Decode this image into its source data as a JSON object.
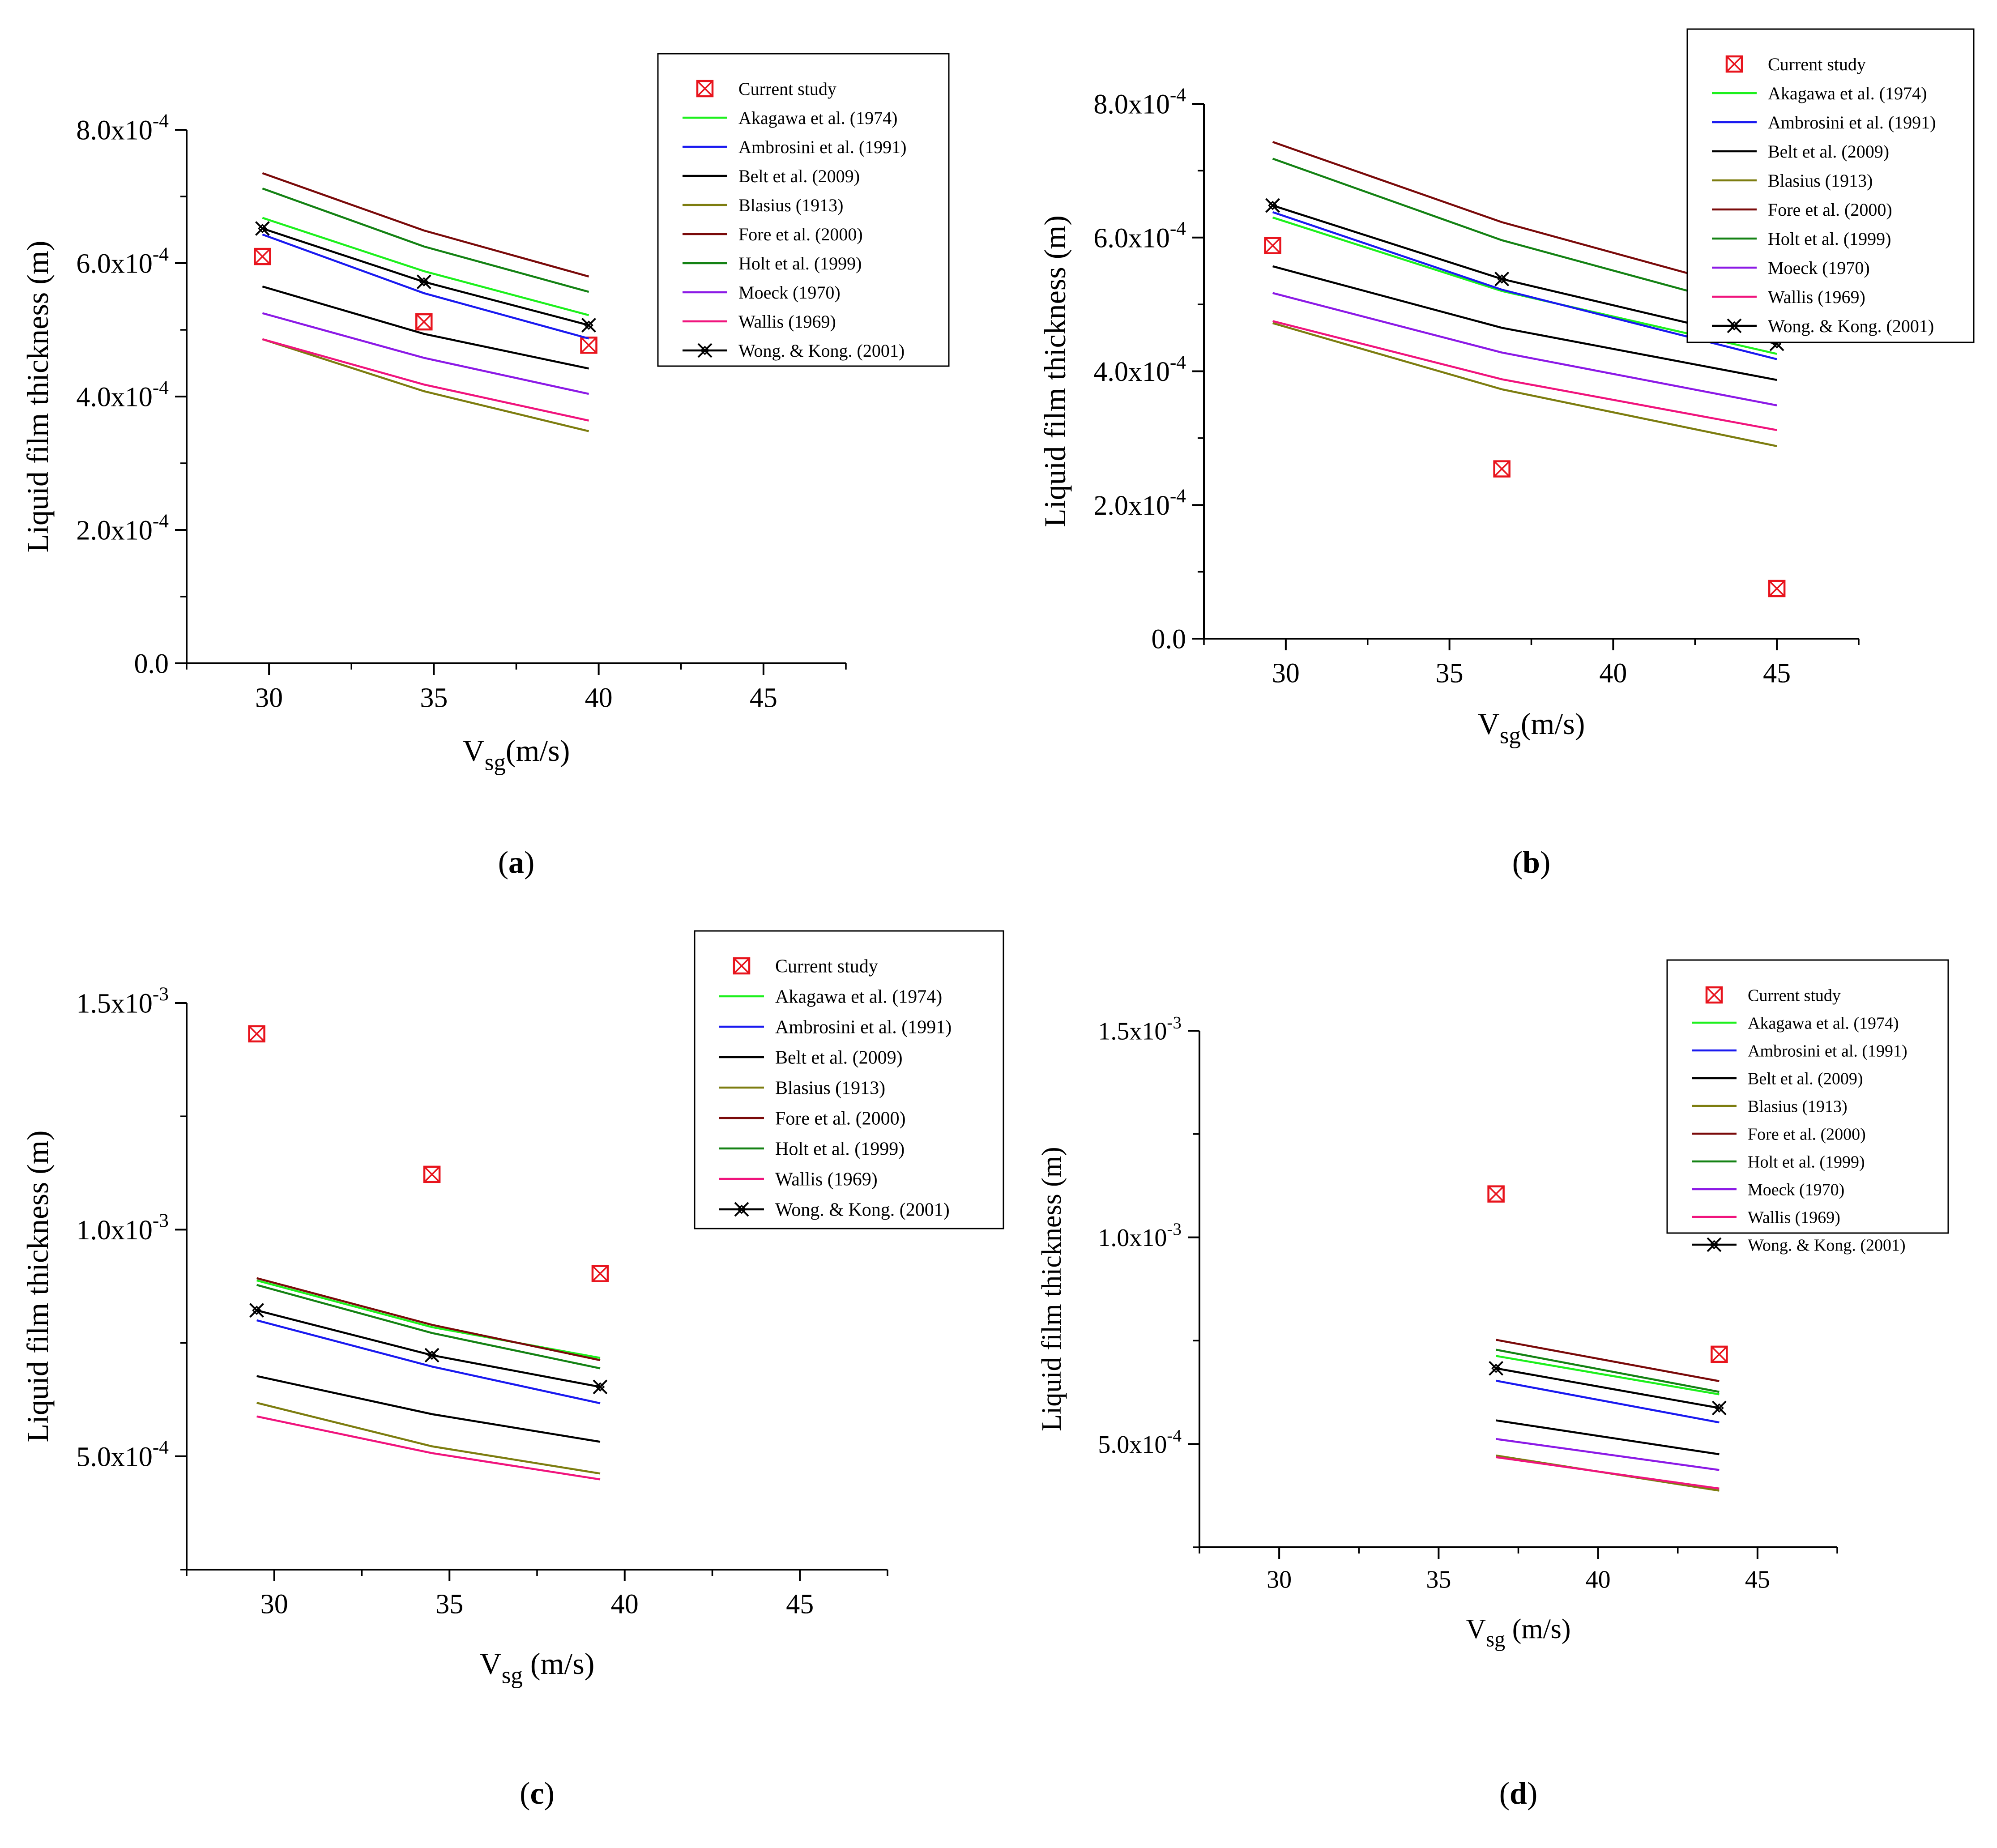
{
  "chart_data": [
    {
      "type": "line",
      "panel_label": "a",
      "xlabel": "V",
      "xlabel_sub": "sg",
      "xlabel_unit": "(m/s)",
      "ylabel": "Liquid film thickness (m)",
      "xlim": [
        27.5,
        47.5
      ],
      "ylim": [
        0,
        0.0008
      ],
      "xticks": [
        30,
        35,
        40,
        45
      ],
      "yticks": [
        {
          "value": 0,
          "mant": "0.0",
          "exp": ""
        },
        {
          "value": 0.0002,
          "mant": "2.0x10",
          "exp": "-4"
        },
        {
          "value": 0.0004,
          "mant": "4.0x10",
          "exp": "-4"
        },
        {
          "value": 0.0006,
          "mant": "6.0x10",
          "exp": "-4"
        },
        {
          "value": 0.0008,
          "mant": "8.0x10",
          "exp": "-4"
        }
      ],
      "legend_placement": "top-right",
      "series": [
        {
          "name": "Current study",
          "color": "#e8141d",
          "style": "marker",
          "x": [
            29.8,
            34.7,
            39.7
          ],
          "values": [
            0.00061,
            0.000512,
            0.000477
          ]
        },
        {
          "name": "Akagawa et al. (1974)",
          "color": "#1df01d",
          "style": "line",
          "x": [
            29.8,
            34.7,
            39.7
          ],
          "values": [
            0.000668,
            0.000588,
            0.000522
          ]
        },
        {
          "name": "Ambrosini et al. (1991)",
          "color": "#1a1af0",
          "style": "line",
          "x": [
            29.8,
            34.7,
            39.7
          ],
          "values": [
            0.000643,
            0.000555,
            0.000487
          ]
        },
        {
          "name": "Belt et al. (2009)",
          "color": "#000000",
          "style": "line",
          "x": [
            29.8,
            34.7,
            39.7
          ],
          "values": [
            0.000565,
            0.000494,
            0.000442
          ]
        },
        {
          "name": "Blasius (1913)",
          "color": "#7d7d10",
          "style": "line",
          "x": [
            29.8,
            34.7,
            39.7
          ],
          "values": [
            0.000486,
            0.000408,
            0.000348
          ]
        },
        {
          "name": "Fore et al. (2000)",
          "color": "#7a0a0a",
          "style": "line",
          "x": [
            29.8,
            34.7,
            39.7
          ],
          "values": [
            0.000735,
            0.000649,
            0.00058
          ]
        },
        {
          "name": "Holt et al. (1999)",
          "color": "#148214",
          "style": "line",
          "x": [
            29.8,
            34.7,
            39.7
          ],
          "values": [
            0.000712,
            0.000625,
            0.000557
          ]
        },
        {
          "name": "Moeck (1970)",
          "color": "#8c1ae6",
          "style": "line",
          "x": [
            29.8,
            34.7,
            39.7
          ],
          "values": [
            0.000525,
            0.000458,
            0.000404
          ]
        },
        {
          "name": "Wallis (1969)",
          "color": "#f0147d",
          "style": "line",
          "x": [
            29.8,
            34.7,
            39.7
          ],
          "values": [
            0.000486,
            0.000418,
            0.000364
          ]
        },
        {
          "name": "Wong. & Kong. (2001)",
          "color": "#000000",
          "style": "line+marker",
          "x": [
            29.8,
            34.7,
            39.7
          ],
          "values": [
            0.000652,
            0.000572,
            0.000507
          ]
        }
      ]
    },
    {
      "type": "line",
      "panel_label": "b",
      "xlabel": "V",
      "xlabel_sub": "sg",
      "xlabel_unit": "(m/s)",
      "ylabel": "Liquid film thickness (m)",
      "xlim": [
        27.5,
        47.5
      ],
      "ylim": [
        0,
        0.0008
      ],
      "xticks": [
        30,
        35,
        40,
        45
      ],
      "yticks": [
        {
          "value": 0,
          "mant": "0.0",
          "exp": ""
        },
        {
          "value": 0.0002,
          "mant": "2.0x10",
          "exp": "-4"
        },
        {
          "value": 0.0004,
          "mant": "4.0x10",
          "exp": "-4"
        },
        {
          "value": 0.0006,
          "mant": "6.0x10",
          "exp": "-4"
        },
        {
          "value": 0.0008,
          "mant": "8.0x10",
          "exp": "-4"
        }
      ],
      "legend_placement": "top-right",
      "series": [
        {
          "name": "Current study",
          "color": "#e8141d",
          "style": "marker",
          "x": [
            29.6,
            36.6,
            45.0
          ],
          "values": [
            0.000588,
            0.000254,
            7.5e-05
          ]
        },
        {
          "name": "Akagawa et al. (1974)",
          "color": "#1df01d",
          "style": "line",
          "x": [
            29.6,
            36.6,
            45.0
          ],
          "values": [
            0.00063,
            0.00052,
            0.000426
          ]
        },
        {
          "name": "Ambrosini et al. (1991)",
          "color": "#1a1af0",
          "style": "line",
          "x": [
            29.6,
            36.6,
            45.0
          ],
          "values": [
            0.000638,
            0.000522,
            0.000418
          ]
        },
        {
          "name": "Belt et al. (2009)",
          "color": "#000000",
          "style": "line",
          "x": [
            29.6,
            36.6,
            45.0
          ],
          "values": [
            0.000557,
            0.000465,
            0.000387
          ]
        },
        {
          "name": "Blasius (1913)",
          "color": "#7d7d10",
          "style": "line",
          "x": [
            29.6,
            36.6,
            45.0
          ],
          "values": [
            0.000472,
            0.000373,
            0.000288
          ]
        },
        {
          "name": "Fore et al. (2000)",
          "color": "#7a0a0a",
          "style": "line",
          "x": [
            29.6,
            36.6,
            45.0
          ],
          "values": [
            0.000743,
            0.000623,
            0.00051
          ]
        },
        {
          "name": "Holt et al. (1999)",
          "color": "#148214",
          "style": "line",
          "x": [
            29.6,
            36.6,
            45.0
          ],
          "values": [
            0.000718,
            0.000596,
            0.000484
          ]
        },
        {
          "name": "Moeck (1970)",
          "color": "#8c1ae6",
          "style": "line",
          "x": [
            29.6,
            36.6,
            45.0
          ],
          "values": [
            0.000517,
            0.000428,
            0.000349
          ]
        },
        {
          "name": "Wallis (1969)",
          "color": "#f0147d",
          "style": "line",
          "x": [
            29.6,
            36.6,
            45.0
          ],
          "values": [
            0.000475,
            0.000388,
            0.000312
          ]
        },
        {
          "name": "Wong. & Kong. (2001)",
          "color": "#000000",
          "style": "line+marker",
          "x": [
            29.6,
            36.6,
            45.0
          ],
          "values": [
            0.000648,
            0.000538,
            0.000441
          ]
        }
      ]
    },
    {
      "type": "line",
      "panel_label": "c",
      "xlabel": "V",
      "xlabel_sub": "sg",
      "xlabel_unit": " (m/s)",
      "ylabel": "Liquid film thickness (m)",
      "xlim": [
        27.5,
        47.5
      ],
      "ylim": [
        0.00025,
        0.0015
      ],
      "xticks": [
        30,
        35,
        40,
        45
      ],
      "yticks": [
        {
          "value": 0.0005,
          "mant": "5.0x10",
          "exp": "-4"
        },
        {
          "value": 0.001,
          "mant": "1.0x10",
          "exp": "-3"
        },
        {
          "value": 0.0015,
          "mant": "1.5x10",
          "exp": "-3"
        }
      ],
      "legend_placement": "top-right",
      "series": [
        {
          "name": "Current study",
          "color": "#e8141d",
          "style": "marker",
          "x": [
            29.5,
            34.5,
            39.3
          ],
          "values": [
            0.001432,
            0.001122,
            0.000903
          ]
        },
        {
          "name": "Akagawa et al. (1974)",
          "color": "#1df01d",
          "style": "line",
          "x": [
            29.5,
            34.5,
            39.3
          ],
          "values": [
            0.000888,
            0.000785,
            0.000717
          ]
        },
        {
          "name": "Ambrosini et al. (1991)",
          "color": "#1a1af0",
          "style": "line",
          "x": [
            29.5,
            34.5,
            39.3
          ],
          "values": [
            0.0008,
            0.000698,
            0.000617
          ]
        },
        {
          "name": "Belt et al. (2009)",
          "color": "#000000",
          "style": "line",
          "x": [
            29.5,
            34.5,
            39.3
          ],
          "values": [
            0.000677,
            0.000593,
            0.000532
          ]
        },
        {
          "name": "Blasius (1913)",
          "color": "#7d7d10",
          "style": "line",
          "x": [
            29.5,
            34.5,
            39.3
          ],
          "values": [
            0.000618,
            0.000522,
            0.000462
          ]
        },
        {
          "name": "Fore et al. (2000)",
          "color": "#7a0a0a",
          "style": "line",
          "x": [
            29.5,
            34.5,
            39.3
          ],
          "values": [
            0.000893,
            0.00079,
            0.000712
          ]
        },
        {
          "name": "Holt et al. (1999)",
          "color": "#148214",
          "style": "line",
          "x": [
            29.5,
            34.5,
            39.3
          ],
          "values": [
            0.000878,
            0.000772,
            0.000694
          ]
        },
        {
          "name": "Wallis (1969)",
          "color": "#f0147d",
          "style": "line",
          "x": [
            29.5,
            34.5,
            39.3
          ],
          "values": [
            0.000588,
            0.000507,
            0.000449
          ]
        },
        {
          "name": "Wong. & Kong. (2001)",
          "color": "#000000",
          "style": "line+marker",
          "x": [
            29.5,
            34.5,
            39.3
          ],
          "values": [
            0.000822,
            0.000723,
            0.000653
          ]
        }
      ]
    },
    {
      "type": "line",
      "panel_label": "d",
      "xlabel": "V",
      "xlabel_sub": "sg",
      "xlabel_unit": " (m/s)",
      "ylabel": "Liquid film thickness (m)",
      "xlim": [
        27.5,
        47.5
      ],
      "ylim": [
        0.00025,
        0.0015
      ],
      "xticks": [
        30,
        35,
        40,
        45
      ],
      "yticks": [
        {
          "value": 0.0005,
          "mant": "5.0x10",
          "exp": "-4"
        },
        {
          "value": 0.001,
          "mant": "1.0x10",
          "exp": "-3"
        },
        {
          "value": 0.0015,
          "mant": "1.5x10",
          "exp": "-3"
        }
      ],
      "legend_placement": "top-right",
      "series": [
        {
          "name": "Current study",
          "color": "#e8141d",
          "style": "marker",
          "x": [
            36.8,
            43.8
          ],
          "values": [
            0.001105,
            0.000717
          ]
        },
        {
          "name": "Akagawa et al. (1974)",
          "color": "#1df01d",
          "style": "line",
          "x": [
            36.8,
            43.8
          ],
          "values": [
            0.000713,
            0.00062
          ]
        },
        {
          "name": "Ambrosini et al. (1991)",
          "color": "#1a1af0",
          "style": "line",
          "x": [
            36.8,
            43.8
          ],
          "values": [
            0.000653,
            0.000552
          ]
        },
        {
          "name": "Belt et al. (2009)",
          "color": "#000000",
          "style": "line",
          "x": [
            36.8,
            43.8
          ],
          "values": [
            0.000557,
            0.000475
          ]
        },
        {
          "name": "Blasius (1913)",
          "color": "#7d7d10",
          "style": "line",
          "x": [
            36.8,
            43.8
          ],
          "values": [
            0.000472,
            0.000387
          ]
        },
        {
          "name": "Fore et al. (2000)",
          "color": "#7a0a0a",
          "style": "line",
          "x": [
            36.8,
            43.8
          ],
          "values": [
            0.000752,
            0.000652
          ]
        },
        {
          "name": "Holt et al. (1999)",
          "color": "#148214",
          "style": "line",
          "x": [
            36.8,
            43.8
          ],
          "values": [
            0.000728,
            0.000626
          ]
        },
        {
          "name": "Moeck (1970)",
          "color": "#8c1ae6",
          "style": "line",
          "x": [
            36.8,
            43.8
          ],
          "values": [
            0.000512,
            0.000437
          ]
        },
        {
          "name": "Wallis (1969)",
          "color": "#f0147d",
          "style": "line",
          "x": [
            36.8,
            43.8
          ],
          "values": [
            0.000468,
            0.000392
          ]
        },
        {
          "name": "Wong. & Kong. (2001)",
          "color": "#000000",
          "style": "line+marker",
          "x": [
            36.8,
            43.8
          ],
          "values": [
            0.000683,
            0.000587
          ]
        }
      ]
    }
  ]
}
